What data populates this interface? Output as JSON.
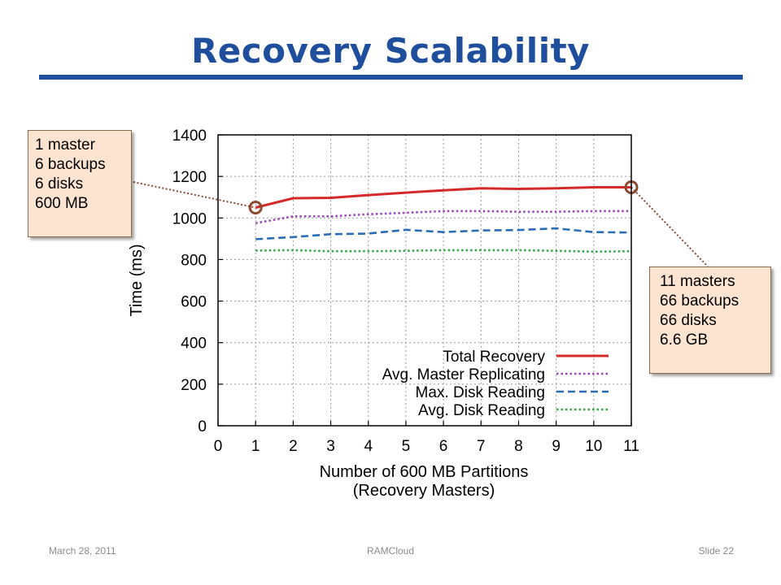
{
  "slide": {
    "title": "Recovery Scalability",
    "footer": {
      "date": "March 28, 2011",
      "center": "RAMCloud",
      "slide_number": "Slide 22"
    }
  },
  "callouts": {
    "left": {
      "lines": [
        "1 master",
        "6 backups",
        "6 disks",
        "600 MB"
      ]
    },
    "right": {
      "lines": [
        "11 masters",
        "66 backups",
        "66 disks",
        "6.6 GB"
      ]
    }
  },
  "chart_data": {
    "type": "line",
    "xlabel_lines": [
      "Number of 600 MB Partitions",
      "(Recovery Masters)"
    ],
    "ylabel": "Time (ms)",
    "xlim": [
      0,
      11
    ],
    "ylim": [
      0,
      1400
    ],
    "xticks": [
      0,
      1,
      2,
      3,
      4,
      5,
      6,
      7,
      8,
      9,
      10,
      11
    ],
    "yticks": [
      0,
      200,
      400,
      600,
      800,
      1000,
      1200,
      1400
    ],
    "grid": true,
    "legend_position": "bottom-right",
    "x": [
      1,
      2,
      3,
      4,
      5,
      6,
      7,
      8,
      9,
      10,
      11
    ],
    "series": [
      {
        "name": "Total Recovery",
        "color": "#d42a2a",
        "style": "solid",
        "values": [
          1050,
          1095,
          1097,
          1110,
          1122,
          1133,
          1143,
          1140,
          1143,
          1148,
          1148
        ]
      },
      {
        "name": "Avg. Master Replicating",
        "color": "#9b45b8",
        "style": "dotted",
        "values": [
          975,
          1008,
          1008,
          1018,
          1025,
          1033,
          1033,
          1030,
          1030,
          1033,
          1033
        ]
      },
      {
        "name": "Max. Disk Reading",
        "color": "#2a6db5",
        "style": "dashed",
        "values": [
          898,
          908,
          922,
          925,
          943,
          932,
          940,
          942,
          950,
          932,
          930
        ]
      },
      {
        "name": "Avg. Disk Reading",
        "color": "#33a84a",
        "style": "dotted",
        "values": [
          843,
          845,
          840,
          840,
          842,
          845,
          845,
          845,
          842,
          838,
          840
        ]
      }
    ],
    "highlight_points": [
      {
        "x": 1,
        "y": 1050
      },
      {
        "x": 11,
        "y": 1148
      }
    ],
    "highlight_color": "#8a4a30"
  }
}
